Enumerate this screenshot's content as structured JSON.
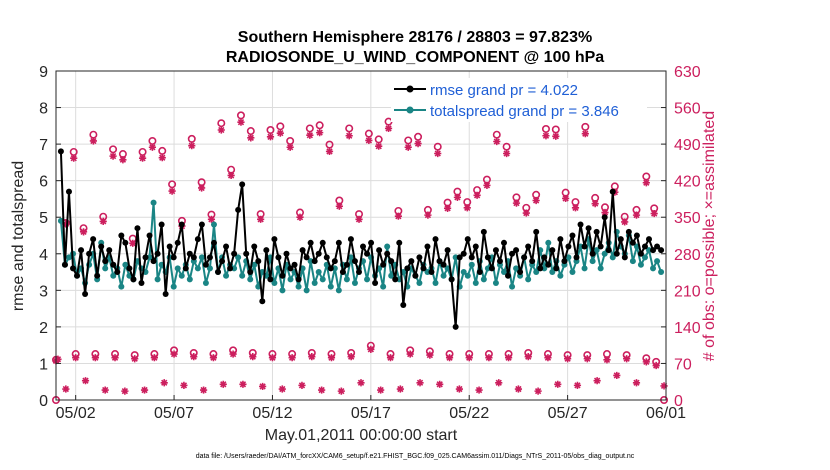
{
  "chart_data": {
    "type": "line",
    "title_line1": "Southern Hemisphere 28176 / 28803 = 97.823%",
    "title_line2": "RADIOSONDE_U_WIND_COMPONENT @ 100 hPa",
    "xlabel": "May.01,2011 00:00:00 start",
    "ylabel": "rmse and totalspread",
    "y2label": "# of obs: o=possible; ×=assimilated",
    "footnote": "data file: /Users/raeder/DAI/ATM_forcXX/CAM6_setup/f.e21.FHIST_BGC.f09_025.CAM6assim.011/Diags_NTrS_2011-05/obs_diag_output.nc",
    "xlim": [
      0,
      31
    ],
    "ylim": [
      0,
      9
    ],
    "y2lim": [
      0,
      630
    ],
    "xtick_values": [
      1,
      6,
      11,
      16,
      21,
      26,
      31
    ],
    "xtick_labels": [
      "05/02",
      "05/07",
      "05/12",
      "05/17",
      "05/22",
      "05/27",
      "06/01"
    ],
    "ytick_labels": [
      "0",
      "1",
      "2",
      "3",
      "4",
      "5",
      "6",
      "7",
      "8",
      "9"
    ],
    "y2tick_labels": [
      "0",
      "70",
      "140",
      "210",
      "280",
      "350",
      "420",
      "490",
      "560",
      "630"
    ],
    "series": [
      {
        "name": "rmse grand pr = 4.022",
        "color": "#000000",
        "values": [
          6.8,
          3.7,
          5.7,
          3.6,
          3.4,
          4.1,
          2.9,
          4.0,
          4.4,
          3.4,
          4.2,
          3.8,
          4.1,
          3.7,
          3.5,
          4.5,
          4.3,
          3.6,
          3.3,
          4.7,
          3.2,
          3.9,
          4.5,
          3.8,
          4.0,
          4.8,
          2.9,
          4.2,
          3.9,
          4.3,
          4.8,
          3.6,
          4.0,
          3.9,
          4.4,
          4.8,
          3.7,
          3.9,
          4.3,
          3.5,
          3.8,
          4.2,
          3.6,
          4.0,
          5.2,
          5.9,
          4.0,
          3.5,
          4.2,
          3.8,
          2.7,
          4.1,
          3.3,
          4.4,
          3.9,
          3.4,
          4.0,
          3.6,
          3.7,
          3.3,
          4.1,
          3.9,
          4.3,
          3.8,
          4.0,
          4.3,
          3.9,
          3.6,
          3.8,
          4.3,
          3.5,
          3.7,
          4.4,
          3.8,
          3.5,
          4.2,
          4.0,
          4.3,
          3.2,
          4.1,
          3.7,
          4.0,
          3.8,
          3.3,
          4.3,
          2.6,
          3.6,
          3.8,
          3.4,
          3.9,
          3.6,
          4.2,
          3.5,
          4.4,
          3.8,
          3.7,
          4.1,
          3.3,
          2.0,
          3.9,
          4.0,
          4.4,
          3.9,
          4.2,
          3.5,
          4.6,
          3.9,
          3.6,
          4.1,
          3.8,
          4.3,
          3.4,
          4.0,
          4.1,
          3.5,
          3.9,
          4.2,
          3.8,
          4.6,
          3.6,
          3.9,
          3.7,
          4.1,
          3.6,
          4.4,
          3.8,
          4.2,
          4.5,
          3.9,
          4.8,
          4.2,
          4.7,
          4.0,
          4.6,
          4.2,
          5.0,
          4.1,
          5.7,
          4.0,
          4.4,
          3.9,
          4.6,
          4.3,
          4.5,
          4.0,
          4.2,
          4.4,
          4.1,
          4.2,
          4.1
        ]
      },
      {
        "name": "totalspread grand pr = 3.846",
        "color": "#1a8585",
        "values": [
          4.9,
          3.7,
          3.9,
          4.0,
          3.4,
          3.6,
          3.2,
          3.7,
          4.0,
          3.3,
          4.3,
          3.6,
          3.9,
          3.4,
          3.6,
          3.1,
          3.7,
          3.4,
          3.3,
          3.8,
          3.6,
          3.5,
          3.9,
          5.4,
          3.3,
          3.7,
          3.5,
          3.9,
          3.1,
          3.6,
          3.4,
          3.7,
          3.3,
          3.8,
          3.6,
          3.9,
          3.2,
          3.6,
          4.8,
          3.5,
          3.9,
          3.4,
          3.7,
          3.6,
          3.9,
          3.4,
          3.8,
          3.3,
          3.7,
          3.1,
          3.5,
          3.4,
          3.9,
          3.2,
          3.6,
          3.0,
          3.7,
          3.3,
          3.5,
          3.1,
          3.6,
          3.0,
          3.8,
          3.2,
          3.5,
          3.3,
          3.7,
          3.1,
          3.6,
          3.0,
          3.7,
          3.3,
          3.9,
          3.2,
          3.6,
          3.8,
          3.3,
          3.9,
          3.4,
          3.6,
          3.1,
          4.2,
          3.4,
          3.7,
          3.3,
          3.5,
          3.1,
          3.6,
          3.4,
          3.2,
          3.7,
          3.5,
          3.6,
          3.2,
          3.8,
          3.4,
          3.6,
          3.3,
          3.9,
          3.1,
          3.5,
          3.4,
          3.7,
          3.2,
          3.8,
          3.3,
          3.6,
          3.9,
          3.2,
          3.7,
          3.5,
          3.8,
          3.1,
          3.6,
          3.4,
          3.9,
          3.3,
          3.7,
          3.5,
          4.1,
          3.6,
          4.3,
          3.5,
          3.8,
          3.4,
          3.7,
          3.9,
          3.5,
          3.8,
          4.2,
          3.6,
          4.4,
          3.8,
          4.1,
          3.6,
          4.0,
          4.3,
          3.9,
          4.6,
          4.2,
          4.0,
          4.5,
          3.8,
          4.2,
          3.7,
          3.9,
          4.1,
          3.6,
          3.8,
          3.5
        ]
      }
    ],
    "obs_possible": [
      {
        "x": 0.0,
        "y": 0
      },
      {
        "x": 0.5,
        "y": 339
      },
      {
        "x": 0.9,
        "y": 475
      },
      {
        "x": 1.4,
        "y": 329
      },
      {
        "x": 1.9,
        "y": 508
      },
      {
        "x": 2.4,
        "y": 351
      },
      {
        "x": 2.9,
        "y": 480
      },
      {
        "x": 3.4,
        "y": 471
      },
      {
        "x": 3.9,
        "y": 309
      },
      {
        "x": 4.4,
        "y": 475
      },
      {
        "x": 4.9,
        "y": 496
      },
      {
        "x": 5.4,
        "y": 477
      },
      {
        "x": 5.9,
        "y": 413
      },
      {
        "x": 6.4,
        "y": 343
      },
      {
        "x": 6.9,
        "y": 500
      },
      {
        "x": 7.4,
        "y": 417
      },
      {
        "x": 7.9,
        "y": 355
      },
      {
        "x": 8.4,
        "y": 530
      },
      {
        "x": 8.9,
        "y": 441
      },
      {
        "x": 9.4,
        "y": 545
      },
      {
        "x": 9.9,
        "y": 515
      },
      {
        "x": 10.4,
        "y": 356
      },
      {
        "x": 10.9,
        "y": 517
      },
      {
        "x": 11.4,
        "y": 524
      },
      {
        "x": 11.9,
        "y": 496
      },
      {
        "x": 12.4,
        "y": 359
      },
      {
        "x": 12.9,
        "y": 520
      },
      {
        "x": 13.4,
        "y": 526
      },
      {
        "x": 13.9,
        "y": 489
      },
      {
        "x": 14.4,
        "y": 382
      },
      {
        "x": 14.9,
        "y": 520
      },
      {
        "x": 15.4,
        "y": 356
      },
      {
        "x": 15.9,
        "y": 510
      },
      {
        "x": 16.4,
        "y": 499
      },
      {
        "x": 16.9,
        "y": 533
      },
      {
        "x": 17.4,
        "y": 362
      },
      {
        "x": 17.9,
        "y": 497
      },
      {
        "x": 18.4,
        "y": 504
      },
      {
        "x": 18.9,
        "y": 364
      },
      {
        "x": 19.4,
        "y": 485
      },
      {
        "x": 19.9,
        "y": 378
      },
      {
        "x": 20.4,
        "y": 399
      },
      {
        "x": 20.9,
        "y": 379
      },
      {
        "x": 21.4,
        "y": 402
      },
      {
        "x": 21.9,
        "y": 422
      },
      {
        "x": 22.4,
        "y": 508
      },
      {
        "x": 22.9,
        "y": 485
      },
      {
        "x": 23.4,
        "y": 388
      },
      {
        "x": 23.9,
        "y": 368
      },
      {
        "x": 24.4,
        "y": 393
      },
      {
        "x": 24.9,
        "y": 519
      },
      {
        "x": 25.4,
        "y": 518
      },
      {
        "x": 25.9,
        "y": 397
      },
      {
        "x": 26.4,
        "y": 379
      },
      {
        "x": 26.9,
        "y": 523
      },
      {
        "x": 27.4,
        "y": 387
      },
      {
        "x": 27.9,
        "y": 369
      },
      {
        "x": 28.4,
        "y": 409
      },
      {
        "x": 28.9,
        "y": 351
      },
      {
        "x": 29.5,
        "y": 364
      },
      {
        "x": 30.0,
        "y": 428
      },
      {
        "x": 30.4,
        "y": 367
      },
      {
        "x": 30.9,
        "y": 0
      }
    ],
    "obs_assimilated": [
      {
        "x": 0.1,
        "y": 78
      },
      {
        "x": 0.5,
        "y": 337
      },
      {
        "x": 0.9,
        "y": 463
      },
      {
        "x": 1.4,
        "y": 322
      },
      {
        "x": 1.9,
        "y": 496
      },
      {
        "x": 2.4,
        "y": 342
      },
      {
        "x": 2.9,
        "y": 467
      },
      {
        "x": 3.4,
        "y": 460
      },
      {
        "x": 3.9,
        "y": 300
      },
      {
        "x": 4.4,
        "y": 463
      },
      {
        "x": 4.9,
        "y": 484
      },
      {
        "x": 5.4,
        "y": 464
      },
      {
        "x": 5.9,
        "y": 400
      },
      {
        "x": 6.4,
        "y": 333
      },
      {
        "x": 6.9,
        "y": 487
      },
      {
        "x": 7.4,
        "y": 406
      },
      {
        "x": 7.9,
        "y": 346
      },
      {
        "x": 8.4,
        "y": 517
      },
      {
        "x": 8.9,
        "y": 430
      },
      {
        "x": 9.4,
        "y": 532
      },
      {
        "x": 9.9,
        "y": 502
      },
      {
        "x": 10.4,
        "y": 346
      },
      {
        "x": 10.9,
        "y": 504
      },
      {
        "x": 11.4,
        "y": 511
      },
      {
        "x": 11.9,
        "y": 484
      },
      {
        "x": 12.4,
        "y": 350
      },
      {
        "x": 12.9,
        "y": 507
      },
      {
        "x": 13.4,
        "y": 512
      },
      {
        "x": 13.9,
        "y": 476
      },
      {
        "x": 14.4,
        "y": 371
      },
      {
        "x": 14.9,
        "y": 506
      },
      {
        "x": 15.4,
        "y": 346
      },
      {
        "x": 15.9,
        "y": 497
      },
      {
        "x": 16.4,
        "y": 486
      },
      {
        "x": 16.9,
        "y": 520
      },
      {
        "x": 17.4,
        "y": 352
      },
      {
        "x": 17.9,
        "y": 484
      },
      {
        "x": 18.4,
        "y": 491
      },
      {
        "x": 18.9,
        "y": 354
      },
      {
        "x": 19.4,
        "y": 472
      },
      {
        "x": 19.9,
        "y": 367
      },
      {
        "x": 20.4,
        "y": 388
      },
      {
        "x": 20.9,
        "y": 368
      },
      {
        "x": 21.4,
        "y": 392
      },
      {
        "x": 21.9,
        "y": 411
      },
      {
        "x": 22.4,
        "y": 495
      },
      {
        "x": 22.9,
        "y": 472
      },
      {
        "x": 23.4,
        "y": 377
      },
      {
        "x": 23.9,
        "y": 358
      },
      {
        "x": 24.4,
        "y": 382
      },
      {
        "x": 24.9,
        "y": 506
      },
      {
        "x": 25.4,
        "y": 505
      },
      {
        "x": 25.9,
        "y": 386
      },
      {
        "x": 26.4,
        "y": 368
      },
      {
        "x": 26.9,
        "y": 510
      },
      {
        "x": 27.4,
        "y": 376
      },
      {
        "x": 27.9,
        "y": 359
      },
      {
        "x": 28.4,
        "y": 398
      },
      {
        "x": 28.9,
        "y": 341
      },
      {
        "x": 29.5,
        "y": 354
      },
      {
        "x": 30.0,
        "y": 416
      },
      {
        "x": 30.4,
        "y": 357
      },
      {
        "x": 30.9,
        "y": 27
      }
    ],
    "obs_low_possible": [
      {
        "x": 0.0,
        "y": 77
      },
      {
        "x": 1.0,
        "y": 88
      },
      {
        "x": 2.0,
        "y": 88
      },
      {
        "x": 3.0,
        "y": 88
      },
      {
        "x": 4.0,
        "y": 86
      },
      {
        "x": 5.0,
        "y": 88
      },
      {
        "x": 6.0,
        "y": 95
      },
      {
        "x": 7.0,
        "y": 90
      },
      {
        "x": 8.0,
        "y": 88
      },
      {
        "x": 9.0,
        "y": 95
      },
      {
        "x": 10.0,
        "y": 90
      },
      {
        "x": 11.0,
        "y": 88
      },
      {
        "x": 12.0,
        "y": 88
      },
      {
        "x": 13.0,
        "y": 90
      },
      {
        "x": 14.0,
        "y": 88
      },
      {
        "x": 15.0,
        "y": 90
      },
      {
        "x": 16.0,
        "y": 104
      },
      {
        "x": 17.0,
        "y": 88
      },
      {
        "x": 18.0,
        "y": 95
      },
      {
        "x": 19.0,
        "y": 93
      },
      {
        "x": 20.0,
        "y": 88
      },
      {
        "x": 21.0,
        "y": 88
      },
      {
        "x": 22.0,
        "y": 88
      },
      {
        "x": 23.0,
        "y": 88
      },
      {
        "x": 24.0,
        "y": 90
      },
      {
        "x": 25.0,
        "y": 88
      },
      {
        "x": 26.0,
        "y": 86
      },
      {
        "x": 27.0,
        "y": 86
      },
      {
        "x": 28.0,
        "y": 88
      },
      {
        "x": 29.0,
        "y": 86
      },
      {
        "x": 30.0,
        "y": 80
      },
      {
        "x": 30.5,
        "y": 73
      }
    ],
    "obs_low_assimilated": [
      {
        "x": 0.0,
        "y": 75
      },
      {
        "x": 1.0,
        "y": 81
      },
      {
        "x": 2.0,
        "y": 81
      },
      {
        "x": 3.0,
        "y": 81
      },
      {
        "x": 4.0,
        "y": 79
      },
      {
        "x": 5.0,
        "y": 81
      },
      {
        "x": 6.0,
        "y": 88
      },
      {
        "x": 7.0,
        "y": 83
      },
      {
        "x": 8.0,
        "y": 81
      },
      {
        "x": 9.0,
        "y": 88
      },
      {
        "x": 10.0,
        "y": 83
      },
      {
        "x": 11.0,
        "y": 81
      },
      {
        "x": 12.0,
        "y": 81
      },
      {
        "x": 13.0,
        "y": 83
      },
      {
        "x": 14.0,
        "y": 81
      },
      {
        "x": 15.0,
        "y": 83
      },
      {
        "x": 16.0,
        "y": 97
      },
      {
        "x": 17.0,
        "y": 81
      },
      {
        "x": 18.0,
        "y": 88
      },
      {
        "x": 19.0,
        "y": 86
      },
      {
        "x": 20.0,
        "y": 81
      },
      {
        "x": 21.0,
        "y": 81
      },
      {
        "x": 22.0,
        "y": 81
      },
      {
        "x": 23.0,
        "y": 81
      },
      {
        "x": 24.0,
        "y": 83
      },
      {
        "x": 25.0,
        "y": 81
      },
      {
        "x": 26.0,
        "y": 79
      },
      {
        "x": 27.0,
        "y": 79
      },
      {
        "x": 28.0,
        "y": 77
      },
      {
        "x": 29.0,
        "y": 79
      },
      {
        "x": 30.0,
        "y": 73
      },
      {
        "x": 30.5,
        "y": 66
      }
    ],
    "obs_bottom_assimilated": [
      {
        "x": 0.5,
        "y": 21
      },
      {
        "x": 1.5,
        "y": 37
      },
      {
        "x": 2.5,
        "y": 19
      },
      {
        "x": 3.5,
        "y": 17
      },
      {
        "x": 4.5,
        "y": 19
      },
      {
        "x": 5.5,
        "y": 33
      },
      {
        "x": 6.5,
        "y": 28
      },
      {
        "x": 7.5,
        "y": 19
      },
      {
        "x": 8.5,
        "y": 30
      },
      {
        "x": 9.5,
        "y": 30
      },
      {
        "x": 10.5,
        "y": 26
      },
      {
        "x": 11.5,
        "y": 21
      },
      {
        "x": 12.5,
        "y": 28
      },
      {
        "x": 13.5,
        "y": 19
      },
      {
        "x": 14.5,
        "y": 17
      },
      {
        "x": 15.5,
        "y": 33
      },
      {
        "x": 16.5,
        "y": 19
      },
      {
        "x": 17.5,
        "y": 21
      },
      {
        "x": 18.5,
        "y": 33
      },
      {
        "x": 19.5,
        "y": 30
      },
      {
        "x": 20.5,
        "y": 21
      },
      {
        "x": 21.5,
        "y": 19
      },
      {
        "x": 22.5,
        "y": 33
      },
      {
        "x": 23.5,
        "y": 21
      },
      {
        "x": 24.5,
        "y": 17
      },
      {
        "x": 25.5,
        "y": 30
      },
      {
        "x": 26.5,
        "y": 28
      },
      {
        "x": 27.5,
        "y": 37
      },
      {
        "x": 28.5,
        "y": 47
      },
      {
        "x": 29.5,
        "y": 33
      }
    ],
    "colors": {
      "obs": "#cc1f5e",
      "grid": "#dcdcdc",
      "axis": "#262626",
      "legend_text": "#1f5fd6"
    }
  }
}
